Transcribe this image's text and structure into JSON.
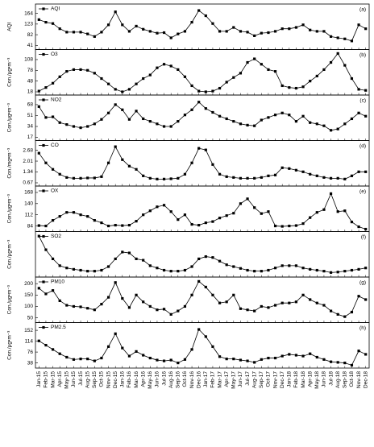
{
  "chart_data": [
    {
      "type": "line",
      "panel_label": "(a)",
      "y_label": "AQI",
      "ylim": [
        25,
        200
      ],
      "yticks": [
        41,
        82,
        123,
        164
      ],
      "series": [
        {
          "name": "AQI",
          "color": "#000000",
          "values": [
            140,
            130,
            125,
            105,
            92,
            92,
            92,
            85,
            75,
            92,
            120,
            170,
            120,
            95,
            115,
            103,
            95,
            88,
            90,
            70,
            85,
            95,
            130,
            175,
            155,
            125,
            95,
            95,
            110,
            95,
            92,
            78,
            88,
            90,
            95,
            105,
            105,
            110,
            120,
            100,
            95,
            95,
            75,
            70,
            66,
            58,
            120,
            105
          ]
        }
      ]
    },
    {
      "type": "line",
      "panel_label": "(b)",
      "y_label": "Con./μg•m⁻³",
      "ylim": [
        9,
        136
      ],
      "yticks": [
        18,
        48,
        78,
        108
      ],
      "series": [
        {
          "name": "O3",
          "color": "#000000",
          "values": [
            20,
            30,
            42,
            60,
            75,
            80,
            80,
            78,
            70,
            55,
            40,
            25,
            18,
            25,
            40,
            55,
            65,
            85,
            95,
            90,
            80,
            60,
            35,
            20,
            18,
            20,
            28,
            45,
            58,
            70,
            100,
            110,
            95,
            80,
            75,
            35,
            30,
            28,
            32,
            48,
            62,
            80,
            100,
            125,
            92,
            55,
            25,
            22
          ]
        }
      ]
    },
    {
      "type": "line",
      "panel_label": "(c)",
      "y_label": "Con./μg•m⁻³",
      "ylim": [
        12,
        83
      ],
      "yticks": [
        17,
        34,
        51,
        68
      ],
      "series": [
        {
          "name": "NO2",
          "color": "#000000",
          "values": [
            65,
            48,
            49,
            40,
            37,
            34,
            32,
            34,
            38,
            45,
            55,
            68,
            60,
            45,
            58,
            46,
            42,
            38,
            34,
            34,
            42,
            52,
            60,
            72,
            62,
            56,
            50,
            46,
            42,
            38,
            36,
            35,
            44,
            48,
            52,
            55,
            52,
            42,
            50,
            40,
            38,
            35,
            28,
            30,
            38,
            46,
            55,
            50
          ]
        }
      ]
    },
    {
      "type": "line",
      "panel_label": "(d)",
      "y_label": "Con./mg•m⁻³",
      "ylim": [
        0.47,
        3.28
      ],
      "yticks": [
        0.67,
        1.34,
        2.01,
        2.68
      ],
      "series": [
        {
          "name": "CO",
          "color": "#000000",
          "values": [
            2.5,
            1.9,
            1.5,
            1.2,
            1.0,
            0.95,
            0.95,
            0.97,
            0.97,
            1.05,
            1.9,
            2.9,
            2.1,
            1.7,
            1.5,
            1.1,
            0.95,
            0.9,
            0.9,
            0.92,
            0.95,
            1.2,
            1.9,
            2.8,
            2.7,
            1.8,
            1.2,
            1.05,
            1.0,
            0.95,
            0.95,
            0.95,
            1.0,
            1.1,
            1.15,
            1.6,
            1.55,
            1.45,
            1.35,
            1.2,
            1.1,
            1.0,
            0.95,
            0.95,
            0.9,
            1.1,
            1.35,
            1.35
          ]
        }
      ]
    },
    {
      "type": "line",
      "panel_label": "(e)",
      "y_label": "Con./μg•m⁻³",
      "ylim": [
        70,
        184
      ],
      "yticks": [
        84,
        112,
        140,
        168
      ],
      "series": [
        {
          "name": "OX",
          "color": "#000000",
          "values": [
            85,
            84,
            98,
            108,
            118,
            118,
            112,
            108,
            98,
            92,
            84,
            86,
            85,
            86,
            96,
            112,
            122,
            132,
            136,
            120,
            100,
            112,
            88,
            86,
            92,
            95,
            104,
            110,
            116,
            140,
            152,
            130,
            115,
            120,
            84,
            83,
            84,
            85,
            90,
            105,
            118,
            125,
            165,
            120,
            122,
            94,
            82,
            76
          ]
        }
      ]
    },
    {
      "type": "line",
      "panel_label": "(f)",
      "y_label": "Con./μg•m⁻³",
      "ylim": [
        5,
        105
      ],
      "series": [
        {
          "name": "SO2",
          "color": "#000000",
          "values": [
            95,
            65,
            45,
            30,
            25,
            22,
            20,
            18,
            18,
            20,
            28,
            45,
            60,
            58,
            45,
            42,
            30,
            25,
            20,
            18,
            18,
            20,
            28,
            45,
            50,
            48,
            40,
            32,
            28,
            24,
            20,
            18,
            18,
            20,
            25,
            30,
            30,
            30,
            25,
            22,
            20,
            18,
            15,
            16,
            18,
            20,
            22,
            25
          ]
        }
      ]
    },
    {
      "type": "line",
      "panel_label": "(g)",
      "y_label": "Con./μg•m⁻³",
      "ylim": [
        29,
        229
      ],
      "yticks": [
        50,
        100,
        150,
        200
      ],
      "series": [
        {
          "name": "PM10",
          "color": "#000000",
          "values": [
            180,
            155,
            170,
            125,
            105,
            100,
            98,
            92,
            85,
            110,
            140,
            205,
            135,
            95,
            150,
            120,
            100,
            85,
            88,
            65,
            80,
            100,
            150,
            210,
            185,
            150,
            115,
            120,
            150,
            90,
            85,
            80,
            100,
            95,
            105,
            115,
            115,
            120,
            150,
            130,
            115,
            105,
            80,
            65,
            55,
            75,
            145,
            130
          ]
        }
      ]
    },
    {
      "type": "line",
      "panel_label": "(h)",
      "y_label": "Con./μg•m⁻³",
      "ylim": [
        20,
        179
      ],
      "yticks": [
        38,
        76,
        114,
        152
      ],
      "categories": [
        "Jan-15",
        "Feb-15",
        "Mar-15",
        "Apr-15",
        "May-15",
        "Jun-15",
        "Jul-15",
        "Aug-15",
        "Sep-15",
        "Oct-15",
        "Nov-15",
        "Dec-15",
        "Jan-16",
        "Feb-16",
        "Mar-16",
        "Apr-16",
        "May-16",
        "Jun-16",
        "Jul-16",
        "Aug-16",
        "Sep-16",
        "Oct-16",
        "Nov-16",
        "Dec-16",
        "Jan-17",
        "Feb-17",
        "Mar-17",
        "Apr-17",
        "May-17",
        "Jun-17",
        "Jul-17",
        "Aug-17",
        "Sep-17",
        "Oct-17",
        "Nov-17",
        "Dec-17",
        "Jan-18",
        "Feb-18",
        "Mar-18",
        "Apr-18",
        "May-18",
        "Jun-18",
        "Jul-18",
        "Aug-18",
        "Sep-18",
        "Oct-18",
        "Nov-18",
        "Dec-18"
      ],
      "series": [
        {
          "name": "PM2.5",
          "color": "#000000",
          "values": [
            115,
            100,
            85,
            70,
            58,
            50,
            52,
            52,
            45,
            55,
            95,
            140,
            90,
            62,
            78,
            65,
            55,
            48,
            45,
            48,
            38,
            50,
            85,
            155,
            130,
            95,
            60,
            52,
            52,
            48,
            45,
            40,
            50,
            55,
            55,
            62,
            68,
            65,
            62,
            70,
            58,
            50,
            42,
            40,
            38,
            30,
            80,
            68
          ]
        }
      ]
    }
  ]
}
